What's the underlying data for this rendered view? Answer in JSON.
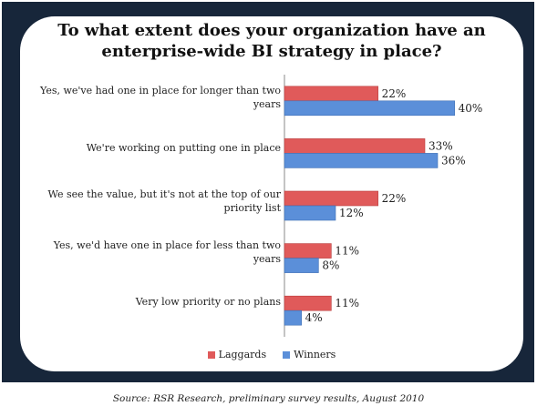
{
  "chart_data": {
    "type": "bar",
    "orientation": "horizontal",
    "title_lines": [
      "To what extent does your organization have an",
      "enterprise-wide BI strategy in place?"
    ],
    "categories": [
      [
        "Yes, we've had one in place for longer than two",
        "years"
      ],
      [
        "We're working on putting one in place"
      ],
      [
        "We see the value, but it's not at the top of our",
        "priority list"
      ],
      [
        "Yes, we'd have one in place for less than two",
        "years"
      ],
      [
        "Very low priority  or no plans"
      ]
    ],
    "series": [
      {
        "name": "Laggards",
        "color": "#e05a5a",
        "values": [
          22,
          33,
          22,
          11,
          11
        ],
        "labels": [
          "22%",
          "33%",
          "22%",
          "11%",
          "11%"
        ]
      },
      {
        "name": "Winners",
        "color": "#5b8fd9",
        "values": [
          40,
          36,
          12,
          8,
          4
        ],
        "labels": [
          "40%",
          "36%",
          "12%",
          "8%",
          "4%"
        ]
      }
    ],
    "xlim": [
      0,
      45
    ],
    "grid": false,
    "legend_position": "bottom"
  },
  "source": "Source: RSR Research, preliminary survey results, August 2010"
}
